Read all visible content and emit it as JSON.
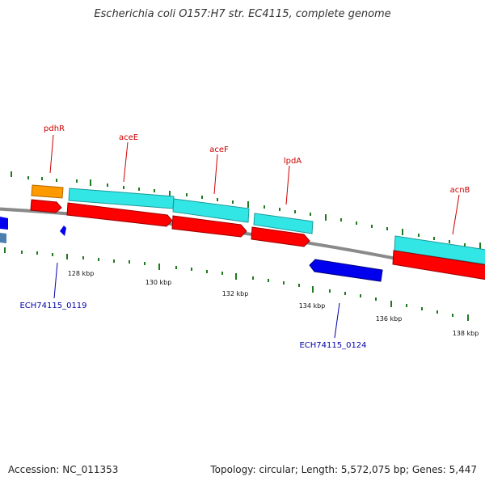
{
  "title": "Escherichia coli O157:H7 str. EC4115, complete genome",
  "footer": {
    "accession": "Accession: NC_011353",
    "stats": "Topology: circular; Length: 5,572,075 bp; Genes: 5,447"
  },
  "colors": {
    "backbone": "#8a8a8a",
    "tick": "#1f7a1f",
    "gene_label": "#cc0000",
    "locus_label": "#0000aa",
    "cds_red": "#ff0000",
    "gene_cyan": "#33e6e6",
    "gene_orange": "#ff9900",
    "cds_blue": "#0000ee",
    "cds_steel": "#4a7fb0"
  },
  "ticks": [
    "128 kbp",
    "130 kbp",
    "132 kbp",
    "134 kbp",
    "136 kbp",
    "138 kbp"
  ],
  "gene_labels": [
    "pdhR",
    "aceE",
    "aceF",
    "lpdA",
    "acnB"
  ],
  "locus_labels": [
    "ECH74115_0119",
    "ECH74115_0124"
  ]
}
